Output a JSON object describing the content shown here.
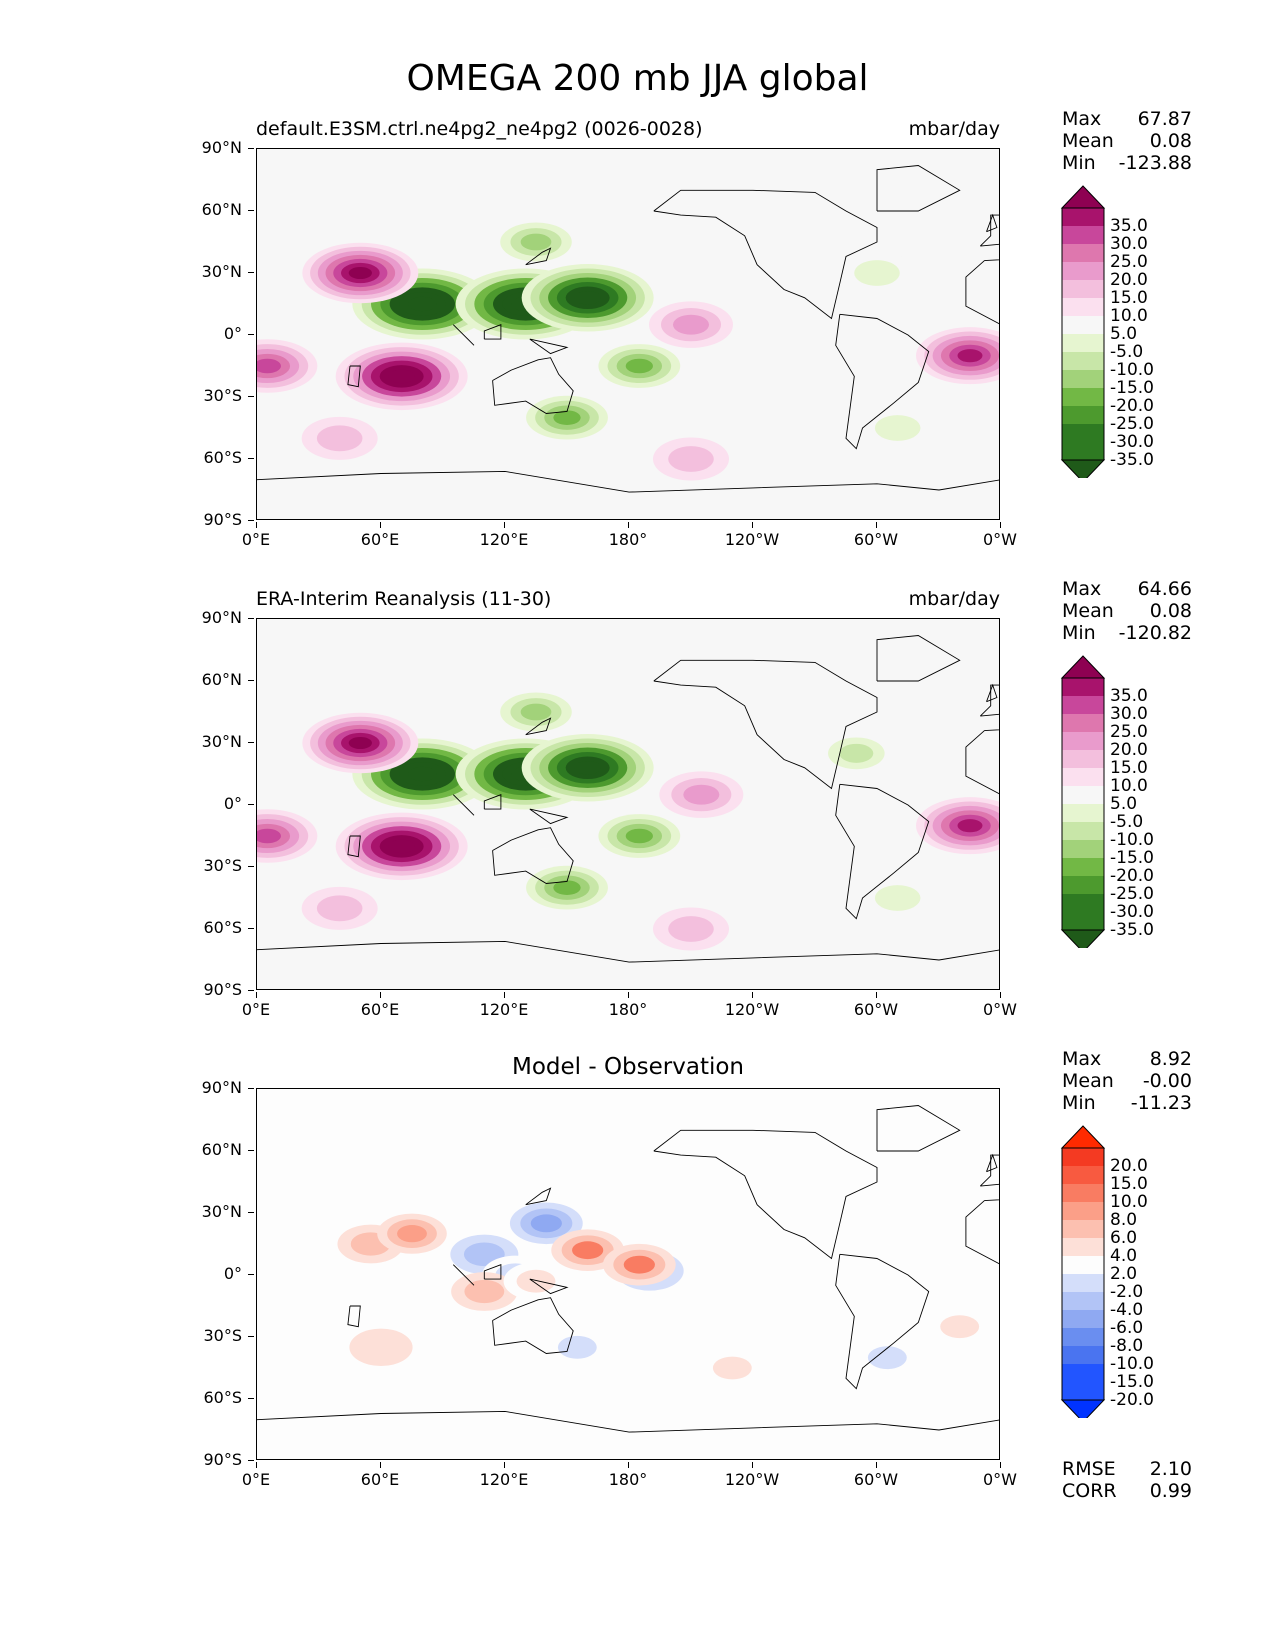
{
  "title": "OMEGA 200 mb JJA global",
  "lat_labels": [
    "90°N",
    "60°N",
    "30°N",
    "0°",
    "30°S",
    "60°S",
    "90°S"
  ],
  "lon_labels": [
    "0°E",
    "60°E",
    "120°E",
    "180°",
    "120°W",
    "60°W",
    "0°W"
  ],
  "colors": {
    "field_palette": [
      "#1f5a19",
      "#2e7a22",
      "#4d9a2e",
      "#72b845",
      "#a2d27a",
      "#c8e6a8",
      "#e6f5d0",
      "#f7f7f7",
      "#fbe0ef",
      "#f3bfdd",
      "#e99bcc",
      "#de77ae",
      "#c8479b",
      "#a8136c",
      "#8e0152"
    ],
    "diff_palette": [
      "#0033ff",
      "#2255ff",
      "#4a74f0",
      "#6a8ef0",
      "#8fa9f2",
      "#b2c4f6",
      "#d4defa",
      "#fdfdfd",
      "#fde0d8",
      "#fcc0b0",
      "#fb9f88",
      "#f97c62",
      "#f85a40",
      "#f43a22",
      "#ff2a00"
    ],
    "coastline": "#000000"
  },
  "panels": [
    {
      "left_title": "default.E3SM.ctrl.ne4pg2_ne4pg2 (0026-0028)",
      "right_title": "mbar/day",
      "stats": [
        {
          "label": "Max",
          "value": "67.87"
        },
        {
          "label": "Mean",
          "value": "0.08"
        },
        {
          "label": "Min",
          "value": "-123.88"
        }
      ],
      "colorbar_labels": [
        "35.0",
        "30.0",
        "25.0",
        "20.0",
        "15.0",
        "10.0",
        "5.0",
        "-5.0",
        "-10.0",
        "-15.0",
        "-20.0",
        "-25.0",
        "-30.0",
        "-35.0"
      ]
    },
    {
      "left_title": "ERA-Interim Reanalysis (11-30)",
      "right_title": "mbar/day",
      "stats": [
        {
          "label": "Max",
          "value": "64.66"
        },
        {
          "label": "Mean",
          "value": "0.08"
        },
        {
          "label": "Min",
          "value": "-120.82"
        }
      ],
      "colorbar_labels": [
        "35.0",
        "30.0",
        "25.0",
        "20.0",
        "15.0",
        "10.0",
        "5.0",
        "-5.0",
        "-10.0",
        "-15.0",
        "-20.0",
        "-25.0",
        "-30.0",
        "-35.0"
      ]
    },
    {
      "center_title": "Model - Observation",
      "stats": [
        {
          "label": "Max",
          "value": "8.92"
        },
        {
          "label": "Mean",
          "value": "-0.00"
        },
        {
          "label": "Min",
          "value": "-11.23"
        }
      ],
      "bottom_stats": [
        {
          "label": "RMSE",
          "value": "2.10"
        },
        {
          "label": "CORR",
          "value": "0.99"
        }
      ],
      "colorbar_labels": [
        "20.0",
        "15.0",
        "10.0",
        "8.0",
        "6.0",
        "4.0",
        "2.0",
        "-2.0",
        "-4.0",
        "-6.0",
        "-8.0",
        "-10.0",
        "-15.0",
        "-20.0"
      ]
    }
  ],
  "chart_data": [
    {
      "type": "heatmap",
      "title": "default.E3SM.ctrl.ne4pg2_ne4pg2 (0026-0028)",
      "units": "mbar/day",
      "x_range": [
        0,
        360
      ],
      "y_range": [
        -90,
        90
      ],
      "levels": [
        -35,
        -30,
        -25,
        -20,
        -15,
        -10,
        -5,
        5,
        10,
        15,
        20,
        25,
        30,
        35
      ],
      "features": [
        {
          "lon": 80,
          "lat": 15,
          "value": -50
        },
        {
          "lon": 130,
          "lat": 15,
          "value": -50
        },
        {
          "lon": 160,
          "lat": 18,
          "value": -45
        },
        {
          "lon": 135,
          "lat": 45,
          "value": -20
        },
        {
          "lon": 185,
          "lat": -15,
          "value": -25
        },
        {
          "lon": 150,
          "lat": -40,
          "value": -25
        },
        {
          "lon": 310,
          "lat": -45,
          "value": -10
        },
        {
          "lon": 300,
          "lat": 30,
          "value": -10
        },
        {
          "lon": 50,
          "lat": 30,
          "value": 35
        },
        {
          "lon": 70,
          "lat": -20,
          "value": 45
        },
        {
          "lon": 5,
          "lat": -15,
          "value": 25
        },
        {
          "lon": 345,
          "lat": -10,
          "value": 30
        },
        {
          "lon": 210,
          "lat": 5,
          "value": 15
        },
        {
          "lon": 210,
          "lat": -60,
          "value": 10
        },
        {
          "lon": 40,
          "lat": -50,
          "value": 10
        }
      ]
    },
    {
      "type": "heatmap",
      "title": "ERA-Interim Reanalysis (11-30)",
      "units": "mbar/day",
      "x_range": [
        0,
        360
      ],
      "y_range": [
        -90,
        90
      ],
      "levels": [
        -35,
        -30,
        -25,
        -20,
        -15,
        -10,
        -5,
        5,
        10,
        15,
        20,
        25,
        30,
        35
      ],
      "features": [
        {
          "lon": 80,
          "lat": 15,
          "value": -50
        },
        {
          "lon": 130,
          "lat": 15,
          "value": -50
        },
        {
          "lon": 160,
          "lat": 18,
          "value": -45
        },
        {
          "lon": 135,
          "lat": 45,
          "value": -20
        },
        {
          "lon": 185,
          "lat": -15,
          "value": -25
        },
        {
          "lon": 150,
          "lat": -40,
          "value": -25
        },
        {
          "lon": 310,
          "lat": -45,
          "value": -10
        },
        {
          "lon": 290,
          "lat": 25,
          "value": -12
        },
        {
          "lon": 50,
          "lat": 30,
          "value": 35
        },
        {
          "lon": 70,
          "lat": -20,
          "value": 45
        },
        {
          "lon": 5,
          "lat": -15,
          "value": 25
        },
        {
          "lon": 345,
          "lat": -10,
          "value": 30
        },
        {
          "lon": 215,
          "lat": 5,
          "value": 15
        },
        {
          "lon": 210,
          "lat": -60,
          "value": 10
        },
        {
          "lon": 40,
          "lat": -50,
          "value": 10
        }
      ]
    },
    {
      "type": "heatmap",
      "title": "Model - Observation",
      "units": "mbar/day",
      "x_range": [
        0,
        360
      ],
      "y_range": [
        -90,
        90
      ],
      "levels": [
        -20,
        -15,
        -10,
        -8,
        -6,
        -4,
        -2,
        2,
        4,
        6,
        8,
        10,
        15,
        20
      ],
      "features": [
        {
          "lon": 140,
          "lat": 25,
          "value": -8
        },
        {
          "lon": 110,
          "lat": 10,
          "value": -5
        },
        {
          "lon": 125,
          "lat": 0,
          "value": -4
        },
        {
          "lon": 190,
          "lat": 2,
          "value": -5
        },
        {
          "lon": 155,
          "lat": -35,
          "value": -3
        },
        {
          "lon": 305,
          "lat": -40,
          "value": -3
        },
        {
          "lon": 25,
          "lat": 5,
          "value": -2
        },
        {
          "lon": 55,
          "lat": 15,
          "value": 4
        },
        {
          "lon": 75,
          "lat": 20,
          "value": 6
        },
        {
          "lon": 160,
          "lat": 12,
          "value": 8
        },
        {
          "lon": 185,
          "lat": 5,
          "value": 8
        },
        {
          "lon": 110,
          "lat": -8,
          "value": 4
        },
        {
          "lon": 135,
          "lat": -3,
          "value": 3
        },
        {
          "lon": 230,
          "lat": -45,
          "value": 3
        },
        {
          "lon": 60,
          "lat": -35,
          "value": 2
        },
        {
          "lon": 340,
          "lat": -25,
          "value": 3
        }
      ]
    }
  ]
}
